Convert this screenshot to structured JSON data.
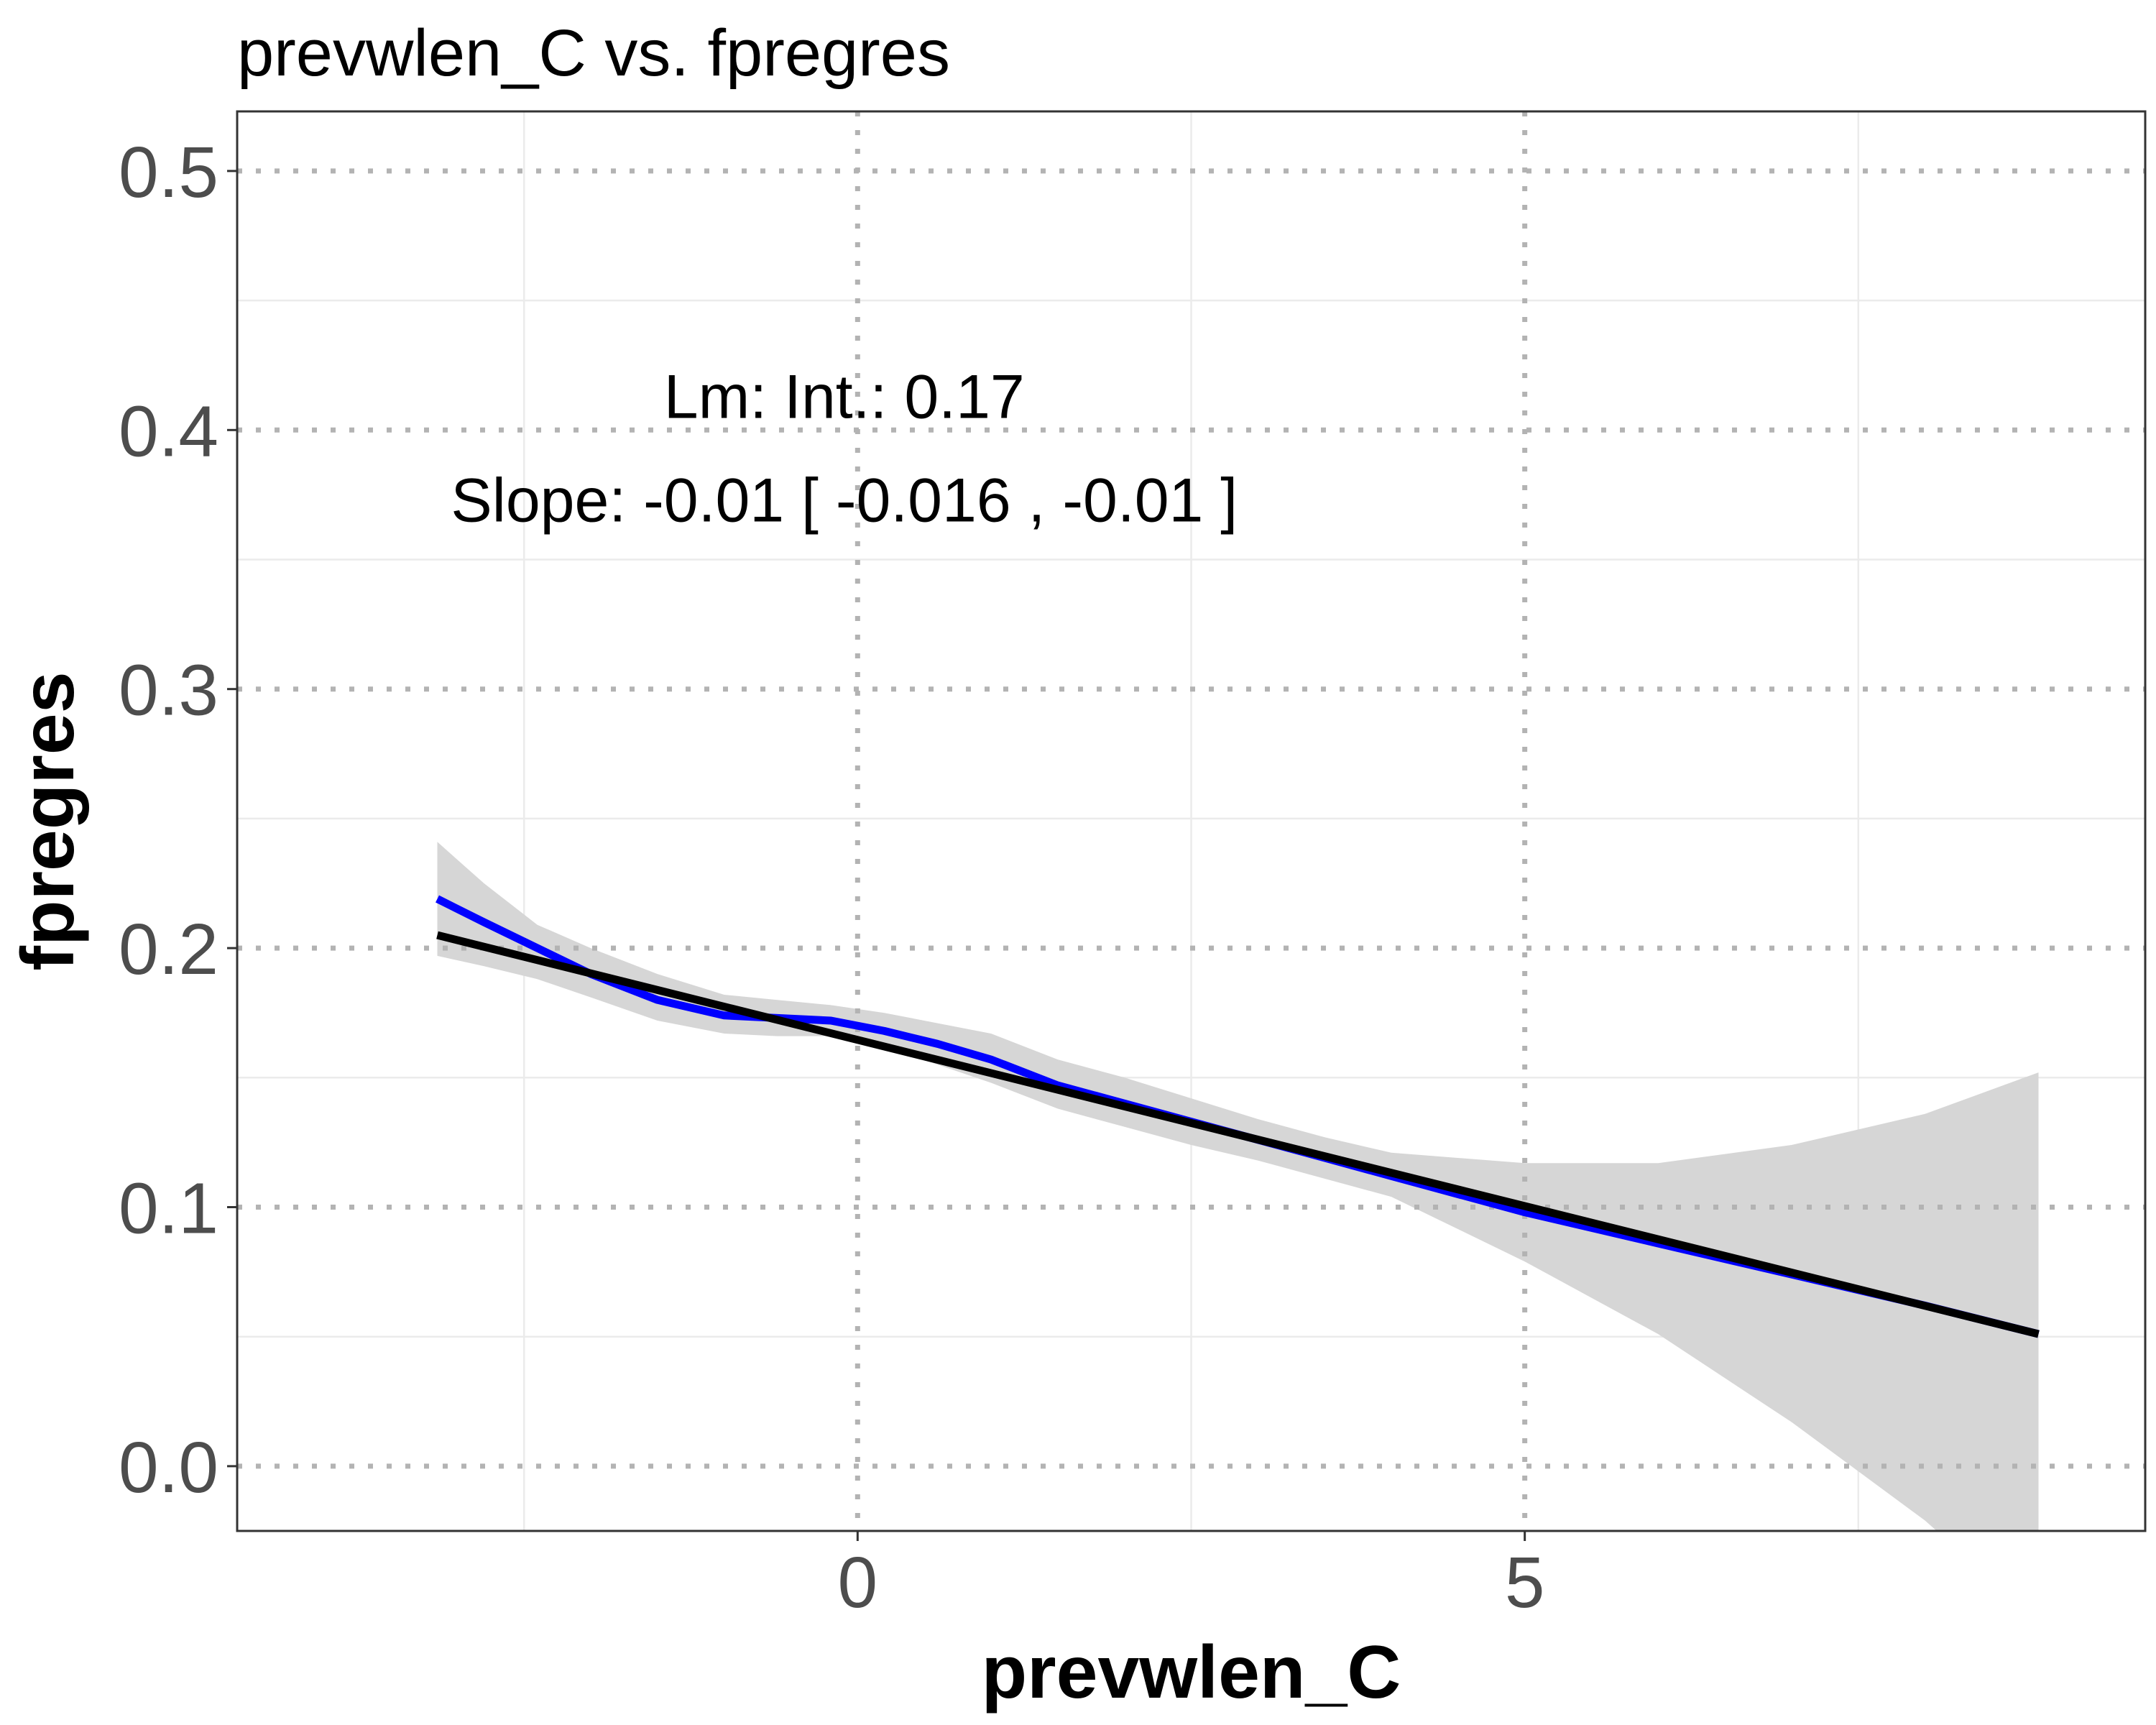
{
  "chart_data": {
    "type": "line",
    "title": "prevwlen_C vs. fpregres",
    "xlabel": "prevwlen_C",
    "ylabel": "fpregres",
    "xlim": [
      -4.65,
      9.65
    ],
    "ylim": [
      -0.025,
      0.523
    ],
    "x_ticks": [
      {
        "value": 0,
        "label": "0"
      },
      {
        "value": 5,
        "label": "5"
      }
    ],
    "x_minor_ticks": [
      -2.5,
      2.5,
      7.5
    ],
    "y_ticks": [
      {
        "value": 0.0,
        "label": "0.0"
      },
      {
        "value": 0.1,
        "label": "0.1"
      },
      {
        "value": 0.2,
        "label": "0.2"
      },
      {
        "value": 0.3,
        "label": "0.3"
      },
      {
        "value": 0.4,
        "label": "0.4"
      },
      {
        "value": 0.5,
        "label": "0.5"
      }
    ],
    "y_minor_ticks": [
      0.05,
      0.15,
      0.25,
      0.35,
      0.45
    ],
    "grid": true,
    "legend": "none",
    "annotations": [
      {
        "text": "Lm: Int.: 0.17",
        "x": -0.1,
        "y": 0.413
      },
      {
        "text": "Slope: -0.01 [ -0.016 , -0.01 ]",
        "x": -0.1,
        "y": 0.373
      }
    ],
    "series": [
      {
        "kind": "loess",
        "color": "#0000ff",
        "x": [
          -3.15,
          -2.8,
          -2.4,
          -2.0,
          -1.5,
          -1.0,
          -0.6,
          -0.2,
          0.2,
          0.6,
          1.0,
          1.5,
          2.0,
          2.5,
          3.0,
          3.5,
          4.0,
          5.0,
          6.0,
          7.0,
          8.0,
          8.85
        ],
        "y": [
          0.219,
          0.21,
          0.2,
          0.19,
          0.18,
          0.174,
          0.173,
          0.172,
          0.168,
          0.163,
          0.157,
          0.147,
          0.14,
          0.133,
          0.126,
          0.119,
          0.112,
          0.098,
          0.086,
          0.074,
          0.062,
          0.051
        ],
        "band_upper": [
          0.241,
          0.225,
          0.209,
          0.2,
          0.19,
          0.182,
          0.18,
          0.178,
          0.175,
          0.171,
          0.167,
          0.157,
          0.15,
          0.142,
          0.134,
          0.127,
          0.121,
          0.117,
          0.117,
          0.124,
          0.136,
          0.152
        ],
        "band_lower": [
          0.197,
          0.193,
          0.188,
          0.181,
          0.172,
          0.167,
          0.166,
          0.166,
          0.162,
          0.155,
          0.148,
          0.138,
          0.131,
          0.124,
          0.118,
          0.111,
          0.104,
          0.079,
          0.051,
          0.017,
          -0.021,
          -0.06
        ]
      },
      {
        "kind": "lm",
        "color": "#000000",
        "x": [
          -3.15,
          8.85
        ],
        "y": [
          0.205,
          0.051
        ]
      }
    ],
    "colors": {
      "band": "#d6d6d6",
      "loess": "#0000ff",
      "lm": "#000000",
      "major_grid": "#b3b3b3",
      "minor_grid": "#ebebeb",
      "panel_border": "#333333"
    }
  }
}
